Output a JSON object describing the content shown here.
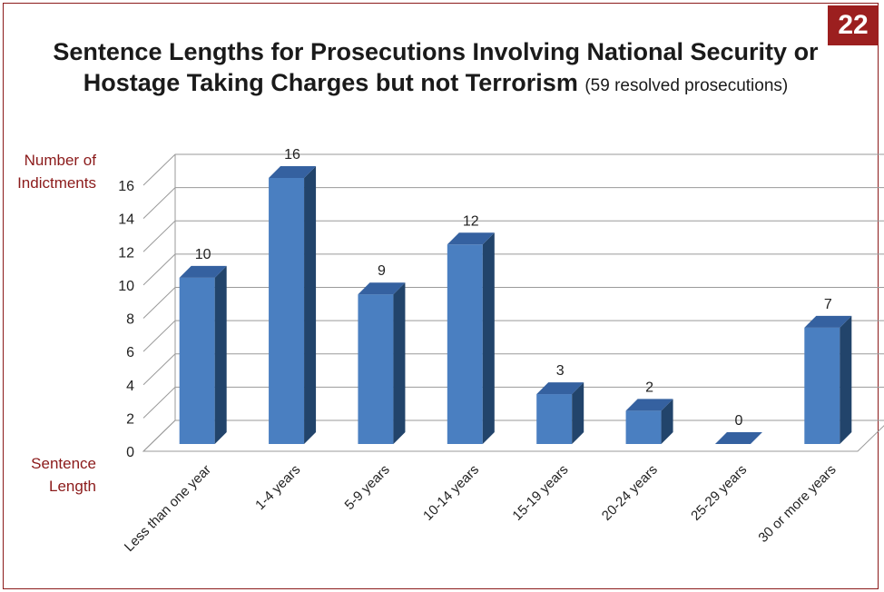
{
  "page_number": "22",
  "title_main": "Sentence Lengths for Prosecutions Involving National Security or Hostage Taking Charges but not Terrorism",
  "title_sub": "(59 resolved prosecutions)",
  "colors": {
    "bar_front": "#4a7fc1",
    "bar_side": "#22446b",
    "bar_top": "#3561a0",
    "accent": "#8b1a1a"
  },
  "chart_data": {
    "type": "bar",
    "style": "3d",
    "title": "Sentence Lengths for Prosecutions Involving National Security or Hostage Taking Charges but not Terrorism",
    "subtitle": "(59 resolved prosecutions)",
    "ylabel": "Number of Indictments",
    "xlabel": "Sentence Length",
    "ylim": [
      0,
      16
    ],
    "yticks": [
      0,
      2,
      4,
      6,
      8,
      10,
      12,
      14,
      16
    ],
    "categories": [
      "Less than one year",
      "1-4 years",
      "5-9 years",
      "10-14 years",
      "15-19 years",
      "20-24 years",
      "25-29 years",
      "30 or more years"
    ],
    "values": [
      10,
      16,
      9,
      12,
      3,
      2,
      0,
      7
    ],
    "grid": true,
    "legend": "none"
  }
}
